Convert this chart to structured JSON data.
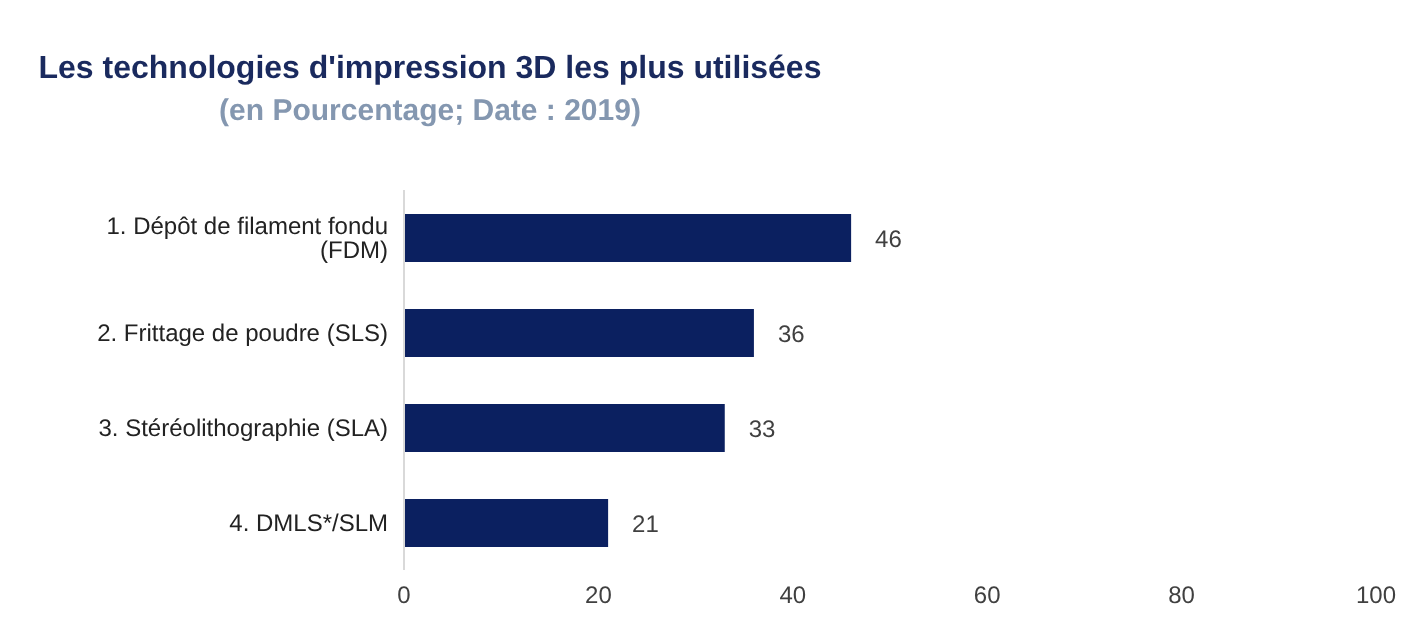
{
  "chart_data": {
    "type": "bar",
    "orientation": "horizontal",
    "title": "Les technologies d'impression 3D les plus utilisées",
    "subtitle": "(en Pourcentage; Date : 2019)",
    "categories": [
      "1. Dépôt de filament fondu (FDM)",
      "2. Frittage de poudre (SLS)",
      "3. Stéréolithographie (SLA)",
      "4. DMLS*/SLM"
    ],
    "values": [
      46,
      36,
      33,
      21
    ],
    "color": "#0b2060",
    "xlim": [
      0,
      100
    ],
    "xticks": [
      0,
      20,
      40,
      60,
      80,
      100
    ],
    "data_labels": true
  }
}
